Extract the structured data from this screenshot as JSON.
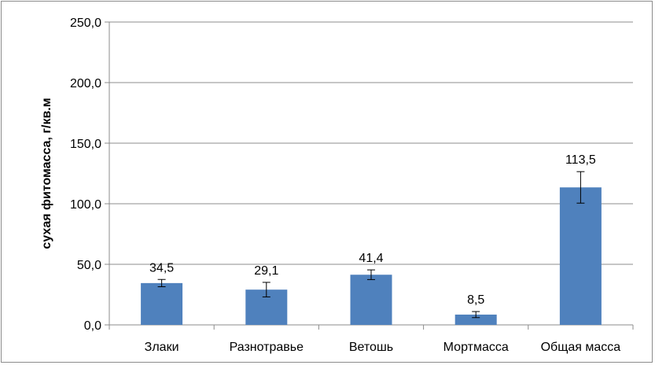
{
  "chart_data": {
    "type": "bar",
    "categories": [
      "Злаки",
      "Разнотравье",
      "Ветошь",
      "Мортмасса",
      "Общая масса"
    ],
    "values": [
      34.5,
      29.1,
      41.4,
      8.5,
      113.5
    ],
    "value_labels": [
      "34,5",
      "29,1",
      "41,4",
      "8,5",
      "113,5"
    ],
    "error_bars": [
      3.0,
      6.0,
      4.0,
      2.5,
      13.0
    ],
    "title": "",
    "xlabel": "",
    "ylabel": "сухая фитомасса, г/кв.м",
    "ylim": [
      0,
      250
    ],
    "yticks": [
      0,
      50,
      100,
      150,
      200,
      250
    ],
    "ytick_labels": [
      "0,0",
      "50,0",
      "100,0",
      "150,0",
      "200,0",
      "250,0"
    ],
    "grid": true,
    "legend": "none",
    "bar_color": "#4f81bd"
  }
}
